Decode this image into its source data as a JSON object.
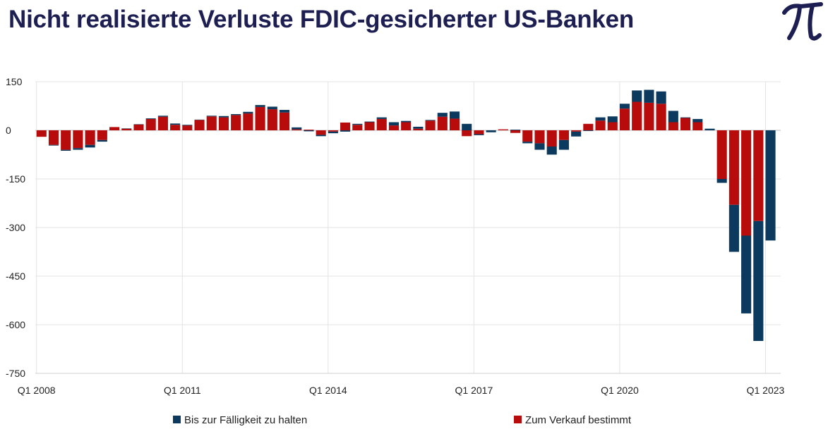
{
  "header": {
    "title": "Nicht realisierte Verluste FDIC-gesicherter US-Banken"
  },
  "logo": {
    "icon": "pi-logo-icon",
    "glyph": "π",
    "color": "#1d1f52"
  },
  "colors": {
    "held_to_maturity": "#0c3a5e",
    "available_for_sale": "#b80b0b",
    "grid": "#e3e3e3",
    "zero_line": "#bbbbbb"
  },
  "chart_data": {
    "type": "bar",
    "stacked": true,
    "title": "Nicht realisierte Verluste FDIC-gesicherter US-Banken",
    "xlabel": "",
    "ylabel": "",
    "ylim": [
      -750,
      150
    ],
    "yticks": [
      150,
      0,
      -150,
      -300,
      -450,
      -600,
      -750
    ],
    "ytick_labels": [
      "150",
      "0",
      "-150",
      "-300",
      "-450",
      "-600",
      "-750"
    ],
    "x_tick_labels": [
      {
        "index": 0,
        "label": "Q1 2008"
      },
      {
        "index": 12,
        "label": "Q1 2011"
      },
      {
        "index": 24,
        "label": "Q1 2014"
      },
      {
        "index": 36,
        "label": "Q1 2017"
      },
      {
        "index": 48,
        "label": "Q1 2020"
      },
      {
        "index": 60,
        "label": "Q1 2023"
      }
    ],
    "grid": true,
    "legend_position": "bottom",
    "series": [
      {
        "name": "Bis zur Fälligkeit zu halten",
        "color": "#0c3a5e",
        "values": [
          0,
          -2,
          -3,
          -5,
          -8,
          -5,
          0,
          1,
          1,
          2,
          3,
          4,
          2,
          1,
          2,
          4,
          3,
          5,
          6,
          8,
          8,
          6,
          -3,
          -4,
          -5,
          -4,
          3,
          2,
          5,
          10,
          4,
          6,
          2,
          12,
          22,
          20,
          -3,
          -6,
          0,
          2,
          -5,
          -20,
          -25,
          -30,
          -15,
          -2,
          10,
          18,
          15,
          35,
          40,
          38,
          35,
          2,
          10,
          5,
          -12,
          -145,
          -240,
          -370,
          -340
        ]
      },
      {
        "name": "Zum Verkauf bestimmt",
        "color": "#b80b0b",
        "values": [
          -20,
          -45,
          -60,
          -55,
          -45,
          -30,
          10,
          5,
          18,
          35,
          42,
          17,
          15,
          32,
          43,
          40,
          47,
          52,
          72,
          65,
          55,
          3,
          2,
          -14,
          -4,
          24,
          17,
          25,
          35,
          15,
          25,
          5,
          30,
          42,
          36,
          -18,
          -12,
          0,
          3,
          -8,
          -35,
          -40,
          -50,
          -30,
          -4,
          20,
          30,
          25,
          67,
          88,
          85,
          82,
          25,
          38,
          25,
          0,
          -150,
          -230,
          -325,
          -280,
          0
        ]
      }
    ]
  },
  "legend": {
    "items": [
      {
        "label": "Bis zur Fälligkeit zu halten",
        "color": "#0c3a5e"
      },
      {
        "label": "Zum Verkauf bestimmt",
        "color": "#b80b0b"
      }
    ]
  }
}
